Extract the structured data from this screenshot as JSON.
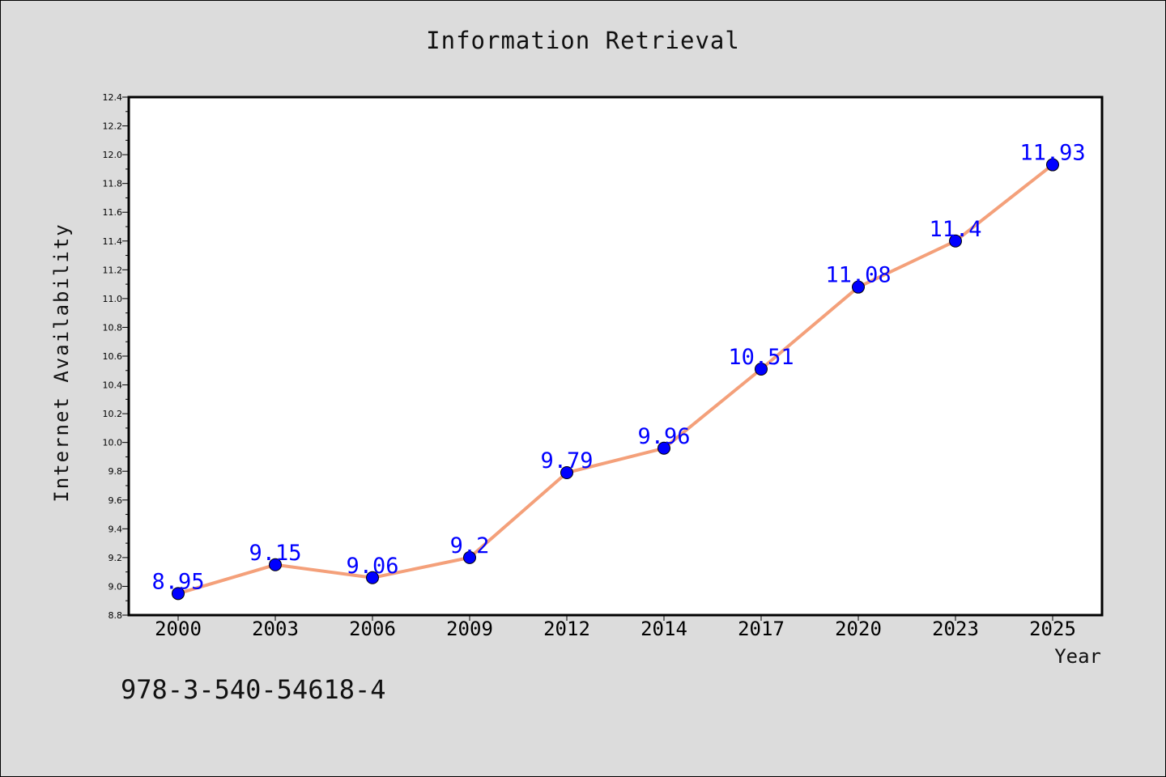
{
  "chart_data": {
    "type": "line",
    "title": "Information Retrieval",
    "xlabel": "Year",
    "ylabel": "Internet Availability",
    "categories": [
      "2000",
      "2003",
      "2006",
      "2009",
      "2012",
      "2014",
      "2017",
      "2020",
      "2023",
      "2025"
    ],
    "series": [
      {
        "values": [
          8.95,
          9.15,
          9.06,
          9.2,
          9.79,
          9.96,
          10.51,
          11.08,
          11.4,
          11.93
        ],
        "labels": [
          "8.95",
          "9.15",
          "9.06",
          "9.2",
          "9.79",
          "9.96",
          "10.51",
          "11.08",
          "11.4",
          "11.93"
        ],
        "color": "#f4a07a",
        "marker_color": "#0000ff"
      }
    ],
    "ylim": [
      8.8,
      12.4
    ],
    "yticks": [
      "8.8",
      "9.0",
      "9.2",
      "9.4",
      "9.6",
      "9.8",
      "10.0",
      "10.2",
      "10.4",
      "10.6",
      "10.8",
      "11.0",
      "11.2",
      "11.4",
      "11.6",
      "11.8",
      "12.0",
      "12.2",
      "12.4"
    ],
    "grid": false
  },
  "annotation": "978-3-540-54618-4",
  "colors": {
    "background": "#dcdcdc",
    "plot_background": "#ffffff",
    "line": "#f4a07a",
    "marker": "#0000ff",
    "label": "#0000ff"
  }
}
